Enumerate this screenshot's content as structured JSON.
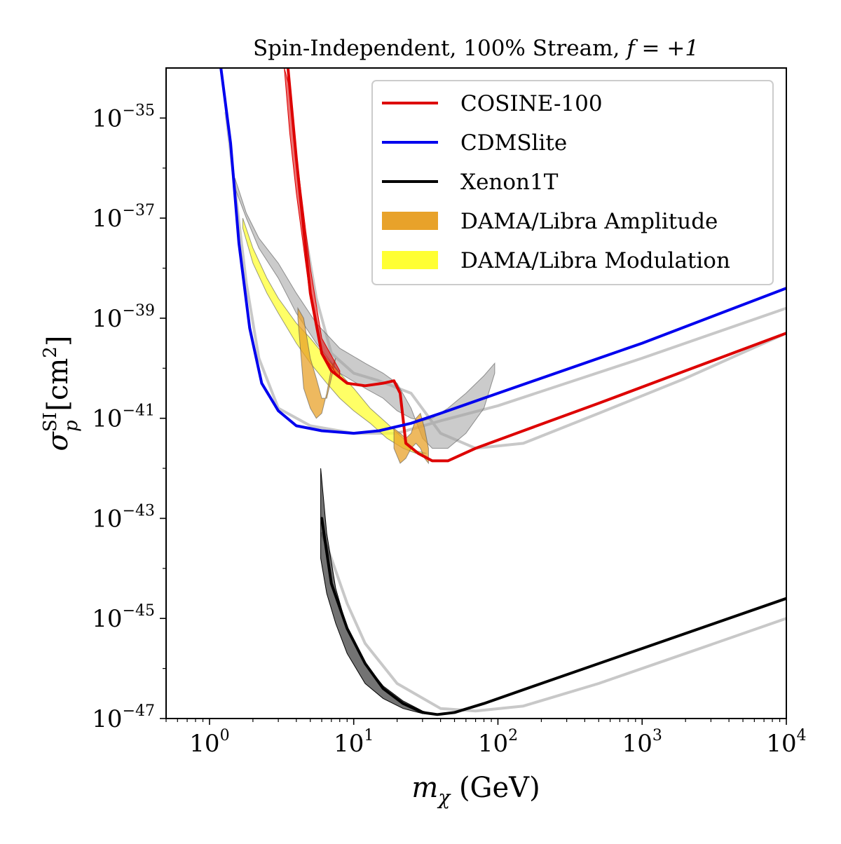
{
  "chart_data": {
    "type": "line",
    "title": "Spin-Independent, 100% Stream, ",
    "title_math": "f = +1",
    "xlabel": "m",
    "xlabel_sub": "χ",
    "xlabel_unit": " (GeV)",
    "ylabel": "σ",
    "ylabel_sup": "SI",
    "ylabel_sub": "p",
    "ylabel_unit": " [cm",
    "ylabel_unit_sup": "2",
    "ylabel_unit_close": "]",
    "xscale": "log",
    "yscale": "log",
    "xlim": [
      0.5,
      10000
    ],
    "ylim": [
      1e-47,
      1e-34
    ],
    "grid": false,
    "legend_position": "top-right",
    "x_ticks": [
      {
        "base": "10",
        "exp": "0",
        "value": 1
      },
      {
        "base": "10",
        "exp": "1",
        "value": 10
      },
      {
        "base": "10",
        "exp": "2",
        "value": 100
      },
      {
        "base": "10",
        "exp": "3",
        "value": 1000
      },
      {
        "base": "10",
        "exp": "4",
        "value": 10000
      }
    ],
    "y_ticks": [
      {
        "base": "10",
        "exp": "−35",
        "value": 1e-35
      },
      {
        "base": "10",
        "exp": "−37",
        "value": 1e-37
      },
      {
        "base": "10",
        "exp": "−39",
        "value": 1e-39
      },
      {
        "base": "10",
        "exp": "−41",
        "value": 1e-41
      },
      {
        "base": "10",
        "exp": "−43",
        "value": 1e-43
      },
      {
        "base": "10",
        "exp": "−45",
        "value": 1e-45
      },
      {
        "base": "10",
        "exp": "−47",
        "value": 1e-47
      }
    ],
    "legend": [
      {
        "label": "COSINE-100",
        "kind": "line",
        "color": "#dd0000"
      },
      {
        "label": "CDMSlite",
        "kind": "line",
        "color": "#0000ee"
      },
      {
        "label": "Xenon1T",
        "kind": "line",
        "color": "#000000"
      },
      {
        "label": "DAMA/Libra Amplitude",
        "kind": "patch",
        "color": "#e8a22a"
      },
      {
        "label": "DAMA/Libra Modulation",
        "kind": "patch",
        "color": "#ffff33"
      }
    ],
    "series": [
      {
        "name": "COSINE-100 reference (grey)",
        "color": "#c8c8c8",
        "role": "reference",
        "x": [
          4.6,
          5.5,
          7,
          10,
          15,
          25,
          40,
          70,
          150,
          500,
          2000,
          10000
        ],
        "logy": [
          -37.3,
          -38.6,
          -39.7,
          -40.1,
          -40.25,
          -40.5,
          -41.3,
          -41.6,
          -41.5,
          -40.9,
          -40.2,
          -39.3
        ]
      },
      {
        "name": "CDMSlite reference (grey)",
        "color": "#c8c8c8",
        "role": "reference",
        "x": [
          1.3,
          1.5,
          1.8,
          2.2,
          3,
          5,
          10,
          20,
          40,
          100,
          1000,
          10000
        ],
        "logy": [
          -34.9,
          -36.4,
          -38.3,
          -39.8,
          -40.8,
          -41.15,
          -41.3,
          -41.3,
          -41.05,
          -40.75,
          -39.8,
          -38.8
        ]
      },
      {
        "name": "Xenon1T reference (grey)",
        "color": "#c8c8c8",
        "role": "reference",
        "x": [
          6,
          7,
          9,
          12,
          20,
          40,
          70,
          150,
          500,
          2000,
          10000
        ],
        "logy": [
          -43.3,
          -43.8,
          -44.7,
          -45.5,
          -46.3,
          -46.8,
          -46.85,
          -46.75,
          -46.3,
          -45.7,
          -45.0
        ]
      },
      {
        "name": "COSINE-100 band",
        "color": "#dd0000",
        "role": "band",
        "x": [
          3.3,
          3.6,
          4,
          5,
          6,
          8
        ],
        "logy_low": [
          -34.0,
          -35.3,
          -36.5,
          -38.6,
          -39.7,
          -40.2
        ],
        "logy_high": [
          -34.0,
          -34.4,
          -35.7,
          -38.0,
          -39.4,
          -40.05
        ]
      },
      {
        "name": "COSINE-100",
        "color": "#dd0000",
        "role": "main",
        "x": [
          3.5,
          4,
          5,
          6,
          7,
          9,
          12,
          16,
          19,
          21,
          23,
          28,
          35,
          45,
          70,
          150,
          500,
          2000,
          10000
        ],
        "logy": [
          -34.0,
          -35.8,
          -38.5,
          -39.7,
          -40.05,
          -40.3,
          -40.35,
          -40.3,
          -40.25,
          -40.5,
          -41.5,
          -41.7,
          -41.85,
          -41.85,
          -41.6,
          -41.25,
          -40.7,
          -40.05,
          -39.3
        ]
      },
      {
        "name": "CDMSlite",
        "color": "#0000ee",
        "role": "main",
        "x": [
          1.2,
          1.4,
          1.6,
          1.9,
          2.3,
          3,
          4,
          6,
          10,
          15,
          25,
          40,
          100,
          1000,
          10000
        ],
        "logy": [
          -34.0,
          -35.5,
          -37.5,
          -39.2,
          -40.3,
          -40.85,
          -41.15,
          -41.25,
          -41.3,
          -41.25,
          -41.1,
          -40.9,
          -40.5,
          -39.5,
          -38.4
        ]
      },
      {
        "name": "Xenon1T",
        "color": "#000000",
        "role": "main",
        "x": [
          6,
          7,
          9,
          12,
          16,
          22,
          30,
          38,
          50,
          80,
          200,
          1000,
          10000
        ],
        "logy": [
          -43.0,
          -44.3,
          -45.2,
          -45.9,
          -46.4,
          -46.7,
          -46.88,
          -46.92,
          -46.88,
          -46.7,
          -46.3,
          -45.6,
          -44.6
        ]
      },
      {
        "name": "Xenon1T band",
        "color": "#000000",
        "role": "band",
        "x": [
          5.9,
          6.5,
          7.5,
          9,
          12,
          16,
          22,
          30,
          37
        ],
        "logy_low": [
          -43.8,
          -44.5,
          -45.1,
          -45.7,
          -46.3,
          -46.6,
          -46.8,
          -46.9,
          -46.92
        ],
        "logy_high": [
          -42.0,
          -43.3,
          -44.4,
          -45.2,
          -45.9,
          -46.35,
          -46.65,
          -46.85,
          -46.92
        ]
      },
      {
        "name": "DAMA/Libra stream contour (grey)",
        "color": "#a0a0a0",
        "role": "region",
        "upper": {
          "x": [
            1.5,
            1.8,
            2.2,
            3,
            4,
            5.5,
            8,
            12,
            16,
            20,
            25,
            30,
            35,
            45,
            60,
            80,
            95
          ],
          "logy": [
            -36.4,
            -37.0,
            -37.6,
            -38.2,
            -38.9,
            -39.5,
            -40.1,
            -40.4,
            -40.6,
            -40.85,
            -41.0,
            -41.05,
            -41.0,
            -40.8,
            -40.5,
            -40.15,
            -39.9
          ]
        },
        "lower": {
          "x": [
            1.5,
            1.8,
            2.2,
            3,
            4,
            5.5,
            8,
            12,
            16,
            20,
            25,
            30,
            35,
            45,
            60,
            80,
            95
          ],
          "logy": [
            -36.2,
            -36.9,
            -37.4,
            -37.9,
            -38.5,
            -39.1,
            -39.6,
            -39.9,
            -40.1,
            -40.3,
            -40.8,
            -41.4,
            -41.6,
            -41.6,
            -41.3,
            -40.8,
            -40.1
          ]
        }
      },
      {
        "name": "DAMA/Libra Modulation",
        "color": "#ffff33",
        "role": "region",
        "upper": {
          "x": [
            1.7,
            2,
            2.5,
            3,
            4,
            5,
            6.5,
            8,
            10,
            13,
            17,
            22,
            27,
            32
          ],
          "logy": [
            -37.2,
            -37.9,
            -38.5,
            -38.9,
            -39.5,
            -39.9,
            -40.3,
            -40.6,
            -40.85,
            -41.1,
            -41.4,
            -41.6,
            -41.7,
            -41.7
          ]
        },
        "lower": {
          "x": [
            1.7,
            2,
            2.5,
            3,
            4,
            5,
            6.5,
            8,
            10,
            13,
            17,
            22,
            27,
            32
          ],
          "logy": [
            -37.0,
            -37.6,
            -38.2,
            -38.6,
            -39.1,
            -39.4,
            -39.8,
            -40.1,
            -40.4,
            -40.8,
            -41.1,
            -41.4,
            -41.65,
            -41.7
          ]
        }
      },
      {
        "name": "DAMA/Libra Amplitude",
        "color": "#e8a22a",
        "role": "region",
        "upper": {
          "x": [
            4.1,
            4.5,
            5,
            5.5,
            6,
            6.5,
            7,
            7.5
          ],
          "logy": [
            -38.8,
            -39.0,
            -39.8,
            -40.2,
            -40.6,
            -40.6,
            -40.2,
            -39.8
          ]
        },
        "lower": {
          "x": [
            4.1,
            4.5,
            5,
            5.5,
            6,
            6.5,
            7,
            7.5
          ],
          "logy": [
            -39.0,
            -40.4,
            -40.8,
            -41.0,
            -40.9,
            -40.5,
            -40.0,
            -39.8
          ]
        }
      },
      {
        "name": "DAMA/Libra Amplitude low",
        "color": "#e8a22a",
        "role": "region",
        "upper": {
          "x": [
            19,
            21,
            23,
            25,
            27,
            29,
            31,
            33
          ],
          "logy": [
            -41.2,
            -41.3,
            -41.4,
            -41.3,
            -41.0,
            -40.9,
            -41.2,
            -41.6
          ]
        },
        "lower": {
          "x": [
            19,
            21,
            23,
            25,
            27,
            29,
            31,
            33
          ],
          "logy": [
            -41.6,
            -41.9,
            -41.8,
            -41.6,
            -41.5,
            -41.6,
            -41.8,
            -41.9
          ]
        }
      }
    ]
  }
}
